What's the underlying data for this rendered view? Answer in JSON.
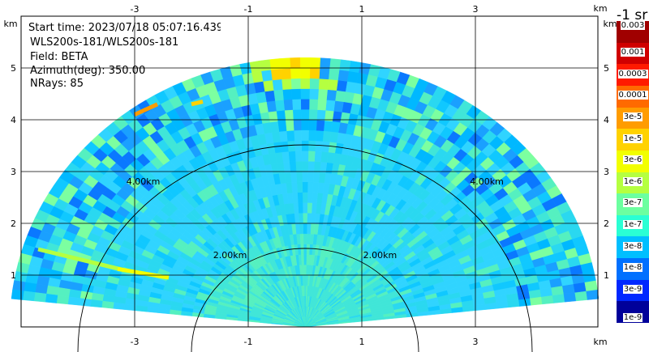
{
  "info": {
    "start_time": "Start time: 2023/07/18 05:07:16.439",
    "instrument": "WLS200s-181/WLS200s-181",
    "field": "Field: BETA",
    "azimuth": "Azimuth(deg): 350.00",
    "nrays": "NRays: 85"
  },
  "colorbar": {
    "title": "-1 sr",
    "labels": [
      "0.003",
      "0.001",
      "0.0003",
      "0.0001",
      "3e-5",
      "1e-5",
      "3e-6",
      "1e-6",
      "3e-7",
      "1e-7",
      "3e-8",
      "1e-8",
      "3e-9",
      "1e-9"
    ],
    "colors": [
      "#a00000",
      "#d00000",
      "#ff1a00",
      "#ff6a00",
      "#ff9c00",
      "#ffd200",
      "#f2ff00",
      "#b5ff40",
      "#6cffa0",
      "#2affd4",
      "#00bfff",
      "#0070ff",
      "#0028ff",
      "#00009a"
    ]
  },
  "chart_data": {
    "type": "heatmap",
    "title": "",
    "xlabel": "km",
    "ylabel": "km",
    "x_ticks": [
      -3,
      -1,
      1,
      3
    ],
    "y_ticks": [
      1,
      2,
      3,
      4,
      5
    ],
    "xlim": [
      -5.0,
      5.0
    ],
    "ylim": [
      0,
      5.8
    ],
    "range_rings": [
      "2.00km",
      "4.00km"
    ],
    "max_range_km": 5.2
  }
}
